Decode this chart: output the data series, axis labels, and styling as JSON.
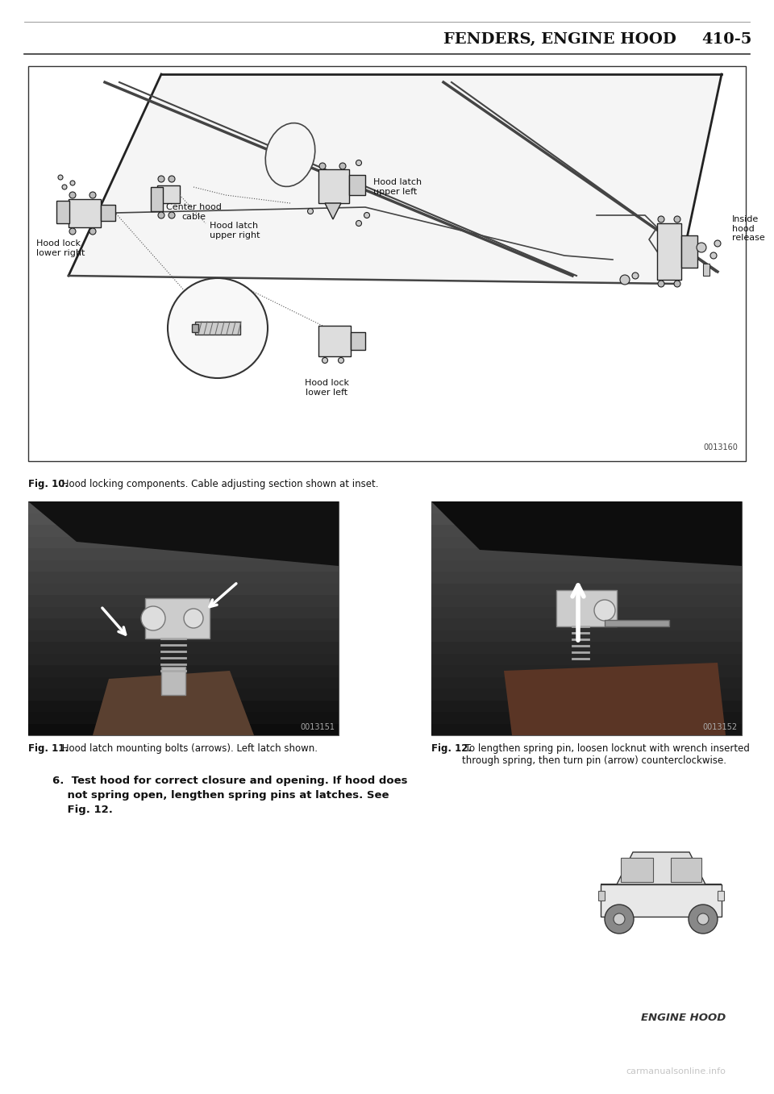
{
  "page_title_left": "FENDERS, ENGINE HOOD",
  "page_title_right": "410-5",
  "footer_text": "ENGINE HOOD",
  "watermark": "carmanualsonline.info",
  "fig10_caption_bold": "Fig. 10.",
  "fig10_caption_rest": " Hood locking components. Cable adjusting section shown at inset.",
  "fig11_caption_bold": "Fig. 11.",
  "fig11_caption_rest": " Hood latch mounting bolts (arrows). Left latch shown.",
  "fig12_caption_bold": "Fig. 12.",
  "fig12_caption_rest": " To lengthen spring pin, loosen locknut with wrench inserted\nthrough spring, then turn pin (arrow) counterclockwise.",
  "step6_line1": "6.  Test hood for correct closure and opening. If hood does",
  "step6_line2": "    not spring open, lengthen spring pins at latches. See",
  "step6_line3": "    Fig. 12.",
  "bg_color": "#ffffff",
  "text_color": "#111111",
  "diagram_bg": "#ffffff",
  "part_number_fig10": "0013160",
  "part_number_fig11": "0013151",
  "part_number_fig12": "0013152",
  "title_fontsize": 14,
  "caption_fontsize": 8.5,
  "body_fontsize": 9.5
}
